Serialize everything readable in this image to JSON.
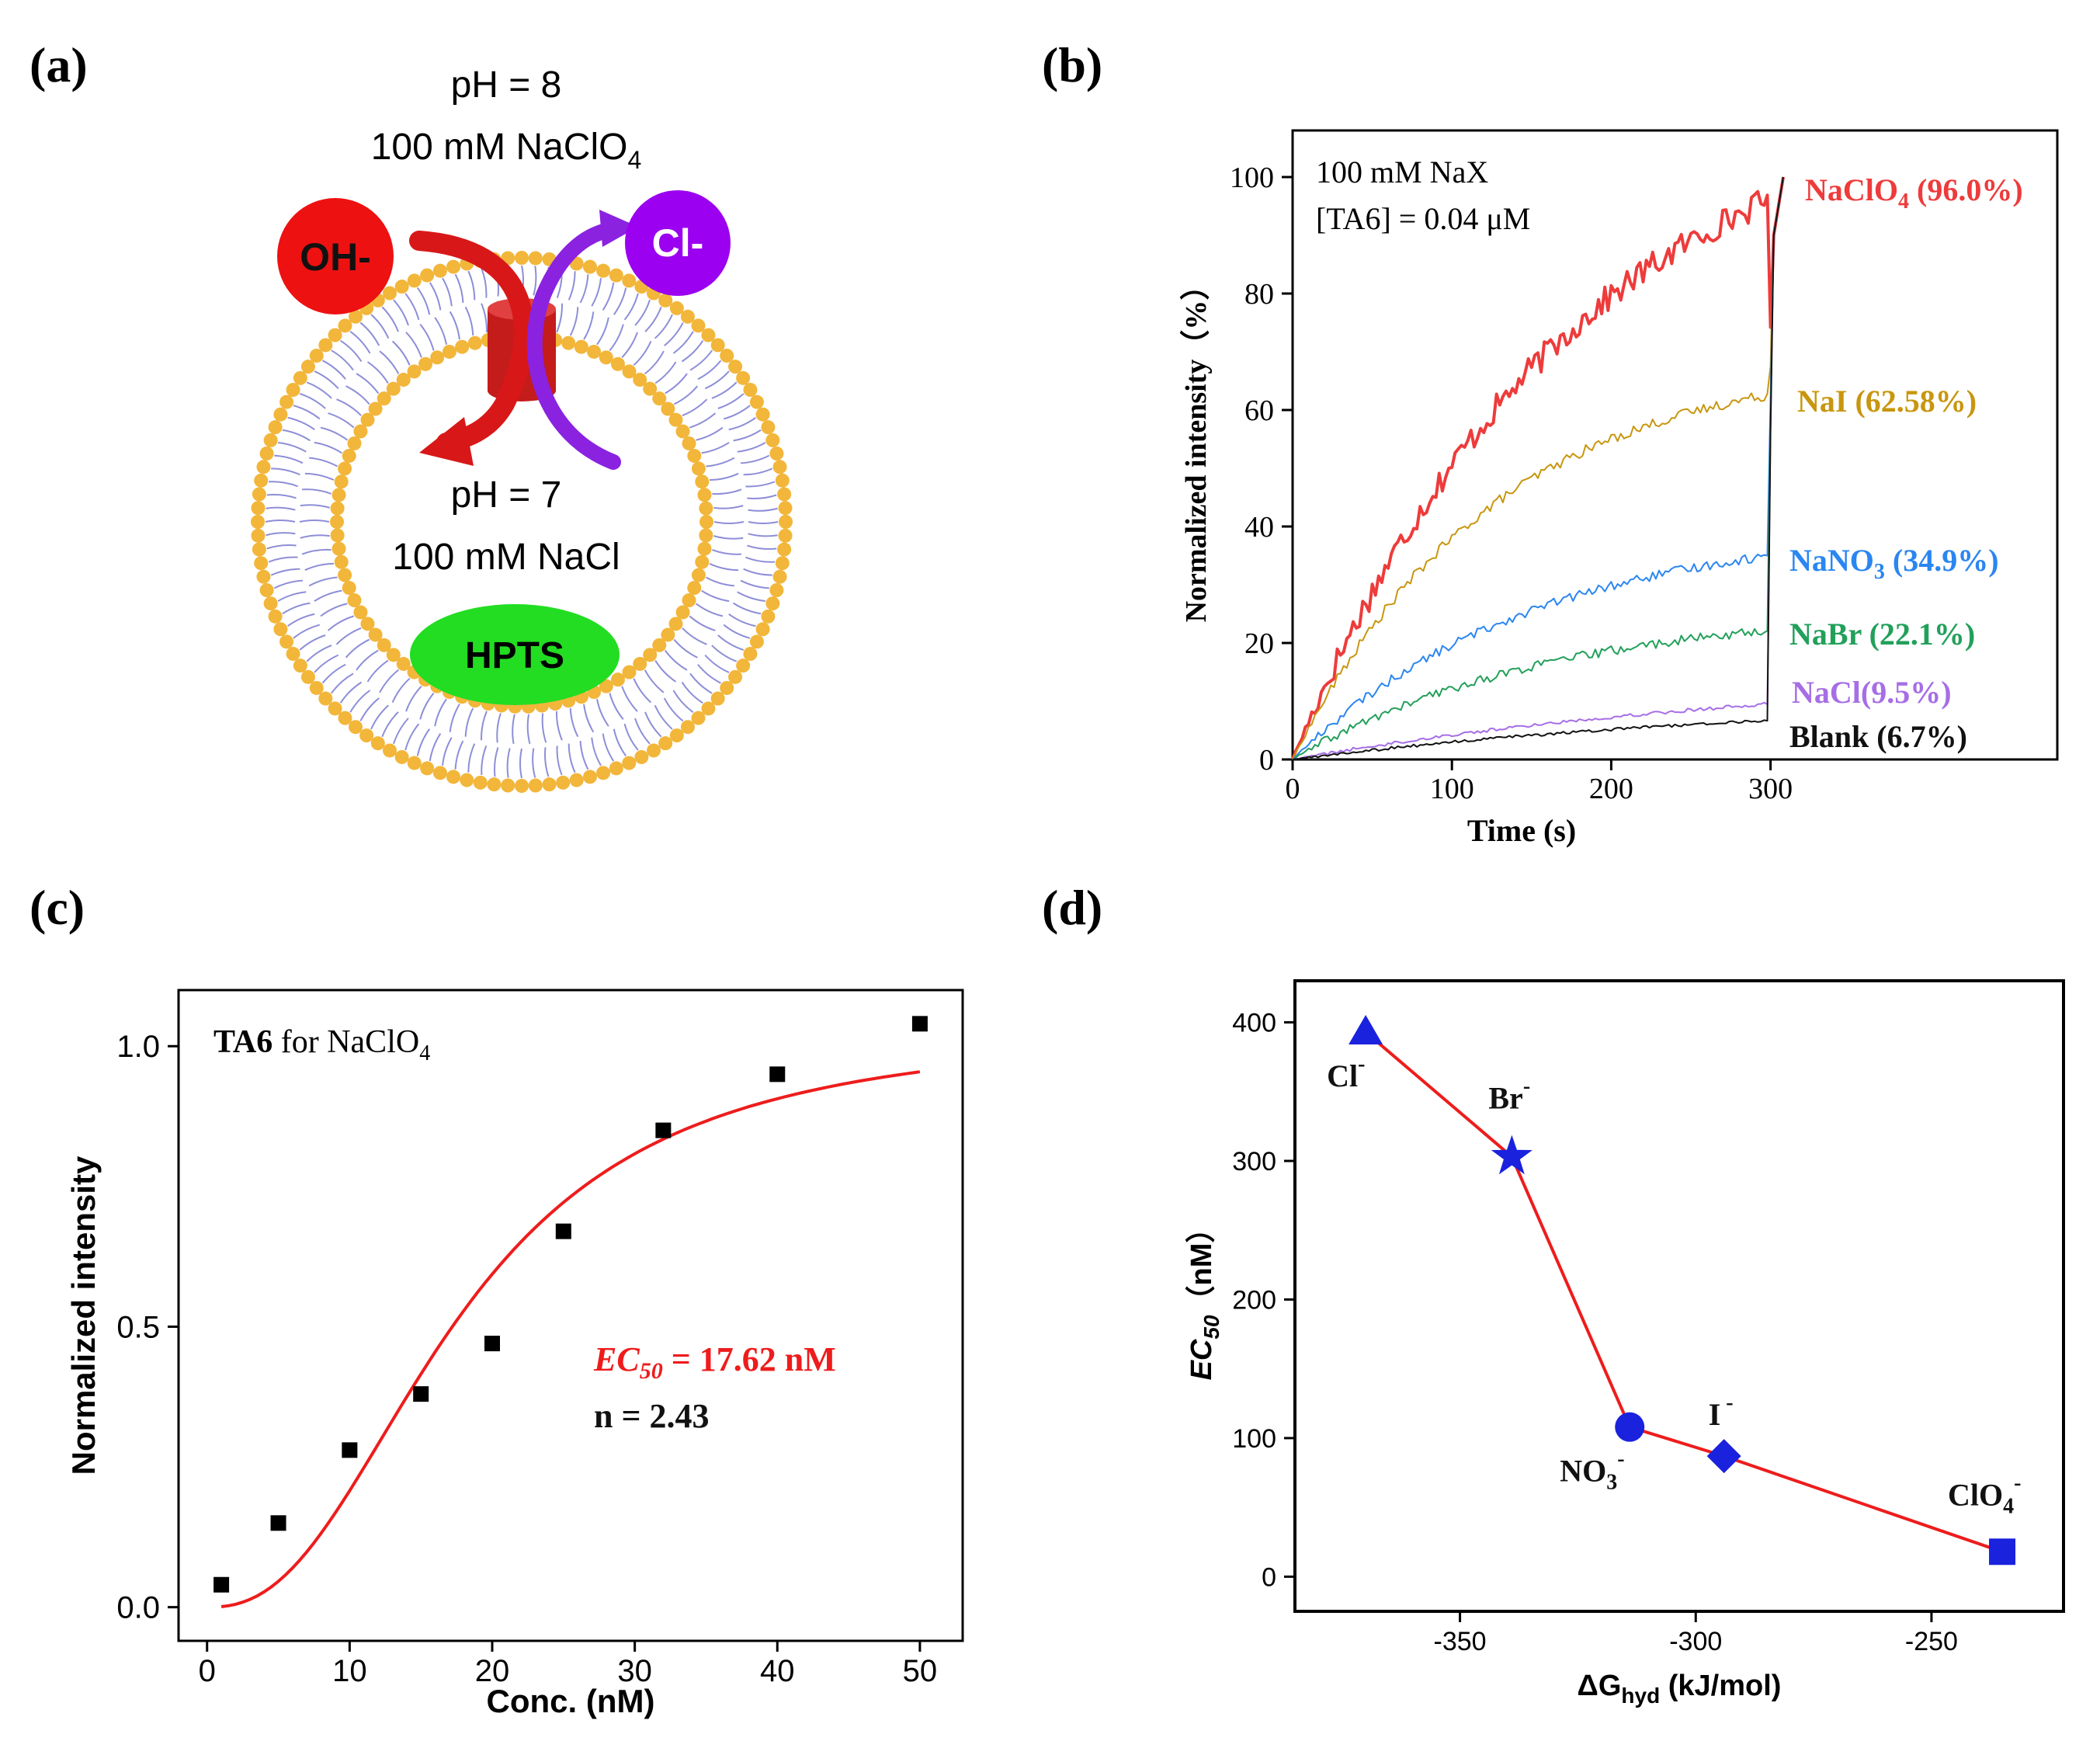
{
  "panels": {
    "a": {
      "label": "(a)",
      "outside_ph": "pH = 8",
      "outside_salt": "100 mM NaClO",
      "outside_salt_sub": "4",
      "inside_ph": "pH = 7",
      "inside_salt": "100 mM NaCl",
      "ion_out": "OH-",
      "ion_in": "Cl-",
      "dye": "HPTS",
      "colors": {
        "oh": "#ee1111",
        "cl": "#9b00f0",
        "hpts": "#22dd22",
        "lipid_head": "#f2b63a",
        "lipid_tail": "#8e8ed8",
        "channel": "#c41b1b"
      }
    },
    "b": {
      "label": "(b)"
    },
    "c": {
      "label": "(c)"
    },
    "d": {
      "label": "(d)"
    }
  },
  "chart_data": [
    {
      "id": "b",
      "type": "line",
      "annotation_line1": "100 mM NaX",
      "annotation_line2": "[TA6] = 0.04 μM",
      "xlabel": "Time (s)",
      "ylabel": "Normalized intensity（%）",
      "xlim": [
        0,
        480
      ],
      "ylim": [
        0,
        108
      ],
      "xticks": [
        0,
        100,
        200,
        300
      ],
      "yticks": [
        0,
        20,
        40,
        60,
        80,
        100
      ],
      "series": [
        {
          "name": "NaClO",
          "sub": "4",
          "suffix": " (96.0%)",
          "end_value": 96.0,
          "amplitude": 101,
          "tau": 180,
          "noise": 2.4,
          "color": "#ee3b3b",
          "width": 4
        },
        {
          "name": "NaI",
          "sub": "",
          "suffix": " (62.58%)",
          "end_value": 62.58,
          "amplitude": 69,
          "tau": 125,
          "noise": 0.9,
          "color": "#c8960f",
          "width": 2
        },
        {
          "name": "NaNO",
          "sub": "3",
          "suffix": " (34.9%)",
          "end_value": 34.9,
          "amplitude": 37,
          "tau": 150,
          "noise": 0.8,
          "color": "#2a86f0",
          "width": 2
        },
        {
          "name": "NaBr",
          "sub": "",
          "suffix": " (22.1%)",
          "end_value": 22.1,
          "amplitude": 24,
          "tau": 160,
          "noise": 0.8,
          "color": "#22a05a",
          "width": 2
        },
        {
          "name": "NaCl",
          "sub": "",
          "suffix": "(9.5%)",
          "end_value": 9.5,
          "amplitude": 12,
          "tau": 320,
          "noise": 0.3,
          "color": "#a66ee6",
          "width": 2
        },
        {
          "name": "Blank",
          "sub": "",
          "suffix": " (6.7%)",
          "end_value": 6.7,
          "amplitude": 8,
          "tau": 320,
          "noise": 0.25,
          "color": "#111111",
          "width": 2
        }
      ],
      "spike_time": 298,
      "spike_end_time": 308,
      "final_value": 100
    },
    {
      "id": "c",
      "type": "scatter",
      "annotation_bold": "TA6",
      "annotation_rest": " for NaClO",
      "annotation_sub": "4",
      "ec50_label": "EC",
      "ec50_sub": "50",
      "ec50_rest": " = 17.62 nM",
      "n_label": "n = 2.43",
      "ec50": 17.62,
      "hill_n": 2.43,
      "xlabel": "Conc. (nM)",
      "ylabel": "Normalized intensity",
      "xlim": [
        -2,
        53
      ],
      "ylim": [
        -0.06,
        1.1
      ],
      "xticks": [
        0,
        10,
        20,
        30,
        40,
        50
      ],
      "yticks": [
        0.0,
        0.5,
        1.0
      ],
      "ytick_labels": [
        "0.0",
        "0.5",
        "1.0"
      ],
      "x": [
        1,
        5,
        10,
        15,
        20,
        25,
        32,
        40,
        50
      ],
      "y": [
        0.04,
        0.15,
        0.28,
        0.38,
        0.47,
        0.67,
        0.85,
        0.95,
        1.04
      ],
      "fit_color": "#ee1c1c",
      "point_color": "#000000"
    },
    {
      "id": "d",
      "type": "scatter",
      "xlabel_main": "ΔG",
      "xlabel_sub": "hyd",
      "xlabel_rest": " (kJ/mol)",
      "ylabel_main": "EC",
      "ylabel_sub": "50",
      "ylabel_rest": "（nM）",
      "xlim": [
        -385,
        -222
      ],
      "ylim": [
        -25,
        430
      ],
      "xticks": [
        -350,
        -300,
        -250
      ],
      "yticks": [
        0,
        100,
        200,
        300,
        400
      ],
      "points": [
        {
          "x": -370,
          "y": 393,
          "marker": "triangle",
          "label": "Cl",
          "sup": "-"
        },
        {
          "x": -339,
          "y": 303,
          "marker": "star",
          "label": "Br",
          "sup": "-"
        },
        {
          "x": -314,
          "y": 108,
          "marker": "circle",
          "label": "NO",
          "sub": "3",
          "sup": "-"
        },
        {
          "x": -294,
          "y": 87,
          "marker": "diamond",
          "label": "I",
          "sup": " -"
        },
        {
          "x": -235,
          "y": 18,
          "marker": "square",
          "label": "ClO",
          "sub": "4",
          "sup": "-"
        }
      ],
      "point_color": "#1a22dd",
      "line_color": "#ee1c1c"
    }
  ]
}
